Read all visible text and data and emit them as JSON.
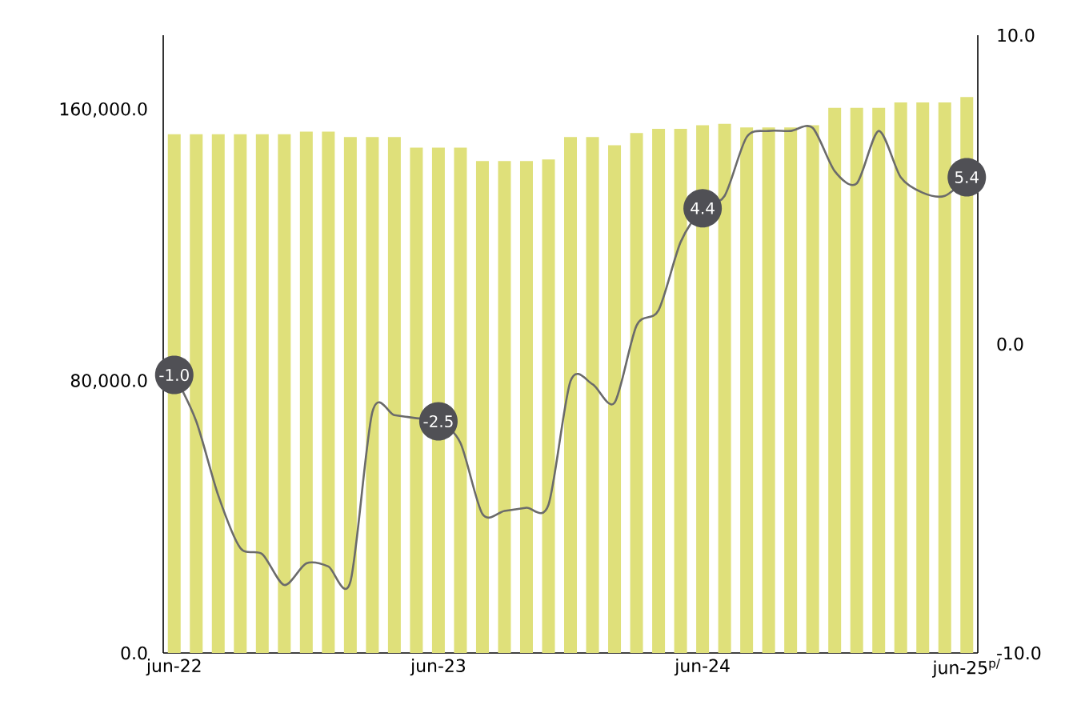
{
  "chart_data": {
    "type": "bar",
    "categories": [
      "jun-22",
      null,
      null,
      null,
      null,
      null,
      null,
      null,
      null,
      null,
      null,
      null,
      "jun-23",
      null,
      null,
      null,
      null,
      null,
      null,
      null,
      null,
      null,
      null,
      null,
      "jun-24",
      null,
      null,
      null,
      null,
      null,
      null,
      null,
      null,
      null,
      null,
      null,
      "jun-25$^{p/}$"
    ],
    "series": [
      {
        "color": "#dfe07a",
        "values": [
          152800,
          152800,
          152800,
          152800,
          152800,
          152800,
          153600,
          153600,
          152000,
          152000,
          152000,
          148900,
          148900,
          148900,
          144900,
          144900,
          144900,
          145400,
          152000,
          152000,
          149600,
          153200,
          154400,
          154400,
          155500,
          155900,
          154800,
          154800,
          154800,
          155500,
          160600,
          160600,
          160600,
          162200,
          162200,
          162200,
          163800
        ]
      },
      {
        "type": "line",
        "axis": "y2",
        "color": "#6b6b6b",
        "values": [
          -1.0,
          -2.5,
          -4.9,
          -6.6,
          -6.8,
          -7.8,
          -7.1,
          -7.2,
          -7.7,
          -2.2,
          -2.3,
          -2.4,
          -2.5,
          -3.2,
          -5.5,
          -5.4,
          -5.3,
          -5.2,
          -1.2,
          -1.3,
          -1.9,
          0.6,
          1.1,
          3.3,
          4.4,
          4.8,
          6.7,
          6.9,
          6.9,
          7.0,
          5.6,
          5.2,
          6.9,
          5.4,
          4.9,
          4.8,
          5.4
        ],
        "value_labels": [
          "-1.0",
          null,
          null,
          null,
          null,
          null,
          null,
          null,
          null,
          null,
          null,
          null,
          "-2.5",
          null,
          null,
          null,
          null,
          null,
          null,
          null,
          null,
          null,
          null,
          null,
          "4.4",
          null,
          null,
          null,
          null,
          null,
          null,
          null,
          null,
          null,
          null,
          null,
          "5.4"
        ]
      }
    ],
    "ylim": [
      0,
      182000
    ],
    "yticks": [
      {
        "value": 0,
        "label": "0.0"
      },
      {
        "value": 80000,
        "label": "80,000.0"
      },
      {
        "value": 160000,
        "label": "160,000.0"
      }
    ],
    "y2lim": [
      -10,
      10
    ],
    "y2ticks": [
      {
        "value": -10,
        "label": "-10.0"
      },
      {
        "value": 0,
        "label": "0.0"
      },
      {
        "value": 10,
        "label": "10.0"
      }
    ]
  }
}
